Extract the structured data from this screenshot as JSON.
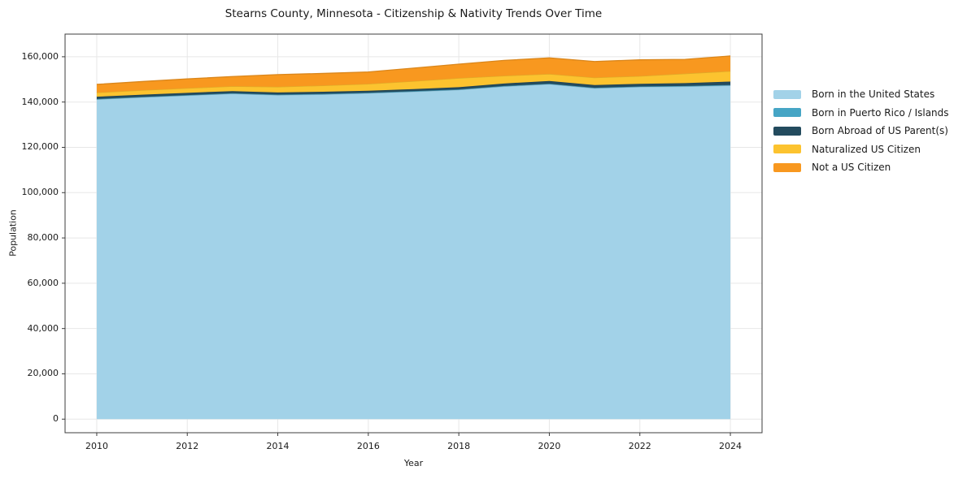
{
  "chart_data": {
    "type": "area",
    "stacked": true,
    "title": "Stearns County, Minnesota - Citizenship & Nativity Trends Over Time",
    "xlabel": "Year",
    "ylabel": "Population",
    "grid": true,
    "legend_position": "right-outside",
    "x": [
      2010,
      2011,
      2012,
      2013,
      2014,
      2015,
      2016,
      2017,
      2018,
      2019,
      2020,
      2021,
      2022,
      2023,
      2024
    ],
    "series": [
      {
        "name": "Born in the United States",
        "color": "#a2d2e8",
        "values": [
          141200,
          142100,
          142900,
          143700,
          143100,
          143400,
          143900,
          144600,
          145400,
          146900,
          147900,
          146100,
          146700,
          146900,
          147300
        ]
      },
      {
        "name": "Born in Puerto Rico / Islands",
        "color": "#46a5c5",
        "values": [
          150,
          160,
          170,
          180,
          180,
          190,
          190,
          200,
          200,
          200,
          200,
          200,
          200,
          200,
          250
        ]
      },
      {
        "name": "Born Abroad of US Parent(s)",
        "color": "#234b5e",
        "values": [
          1000,
          1000,
          1000,
          950,
          950,
          950,
          900,
          900,
          950,
          1100,
          1200,
          1200,
          1150,
          1250,
          1500
        ]
      },
      {
        "name": "Naturalized US Citizen",
        "color": "#fcc32f",
        "values": [
          1850,
          1950,
          2050,
          2150,
          2500,
          2750,
          3000,
          3500,
          4000,
          3400,
          3100,
          3300,
          3400,
          4200,
          4600
        ]
      },
      {
        "name": "Not a US Citizen",
        "color": "#f8981f",
        "values": [
          3600,
          3850,
          4100,
          4300,
          5400,
          5350,
          5300,
          5800,
          6200,
          6800,
          7100,
          7100,
          7200,
          6300,
          6700
        ]
      }
    ],
    "xticks": {
      "values": [
        2010,
        2012,
        2014,
        2016,
        2018,
        2020,
        2022,
        2024
      ],
      "labels": [
        "2010",
        "2012",
        "2014",
        "2016",
        "2018",
        "2020",
        "2022",
        "2024"
      ]
    },
    "yticks": {
      "values": [
        0,
        20000,
        40000,
        60000,
        80000,
        100000,
        120000,
        140000,
        160000
      ],
      "labels": [
        "0",
        "20,000",
        "40,000",
        "60,000",
        "80,000",
        "100,000",
        "120,000",
        "140,000",
        "160,000"
      ]
    },
    "xlim": [
      2009.3,
      2024.7
    ],
    "ylim": [
      -6000,
      170000
    ],
    "colors": {
      "frame": "#3c3c3c",
      "gridline": "#e7e7e7",
      "text": "#1a1a1a",
      "background": "#ffffff"
    }
  }
}
